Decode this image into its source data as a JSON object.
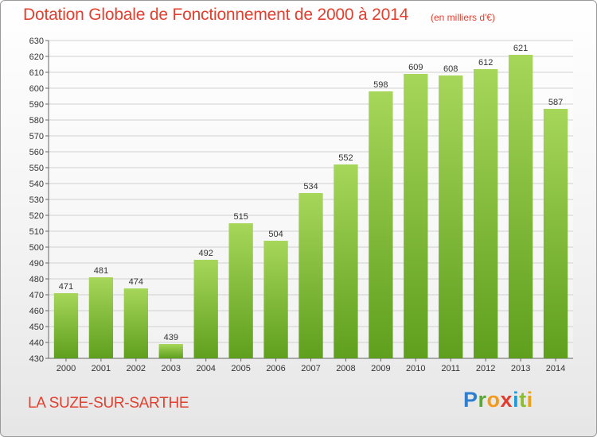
{
  "title": "Dotation Globale de Fonctionnement de 2000 à 2014",
  "unit_note": "(en milliers d'€)",
  "commune": "LA SUZE-SUR-SARTHE",
  "logo": "Proxiti",
  "colors": {
    "title": "#e2402f",
    "bar_light": "#a6d65a",
    "bar_dark": "#5f9f1e",
    "grid": "#d0d0d0"
  },
  "chart_data": {
    "type": "bar",
    "title": "Dotation Globale de Fonctionnement de 2000 à 2014",
    "xlabel": "",
    "ylabel": "",
    "categories": [
      "2000",
      "2001",
      "2002",
      "2003",
      "2004",
      "2005",
      "2006",
      "2007",
      "2008",
      "2009",
      "2010",
      "2011",
      "2012",
      "2013",
      "2014"
    ],
    "values": [
      471,
      481,
      474,
      439,
      492,
      515,
      504,
      534,
      552,
      598,
      609,
      608,
      612,
      621,
      587
    ],
    "ylim": [
      430,
      630
    ],
    "ytick_step": 10,
    "grid": true,
    "data_labels": true
  }
}
